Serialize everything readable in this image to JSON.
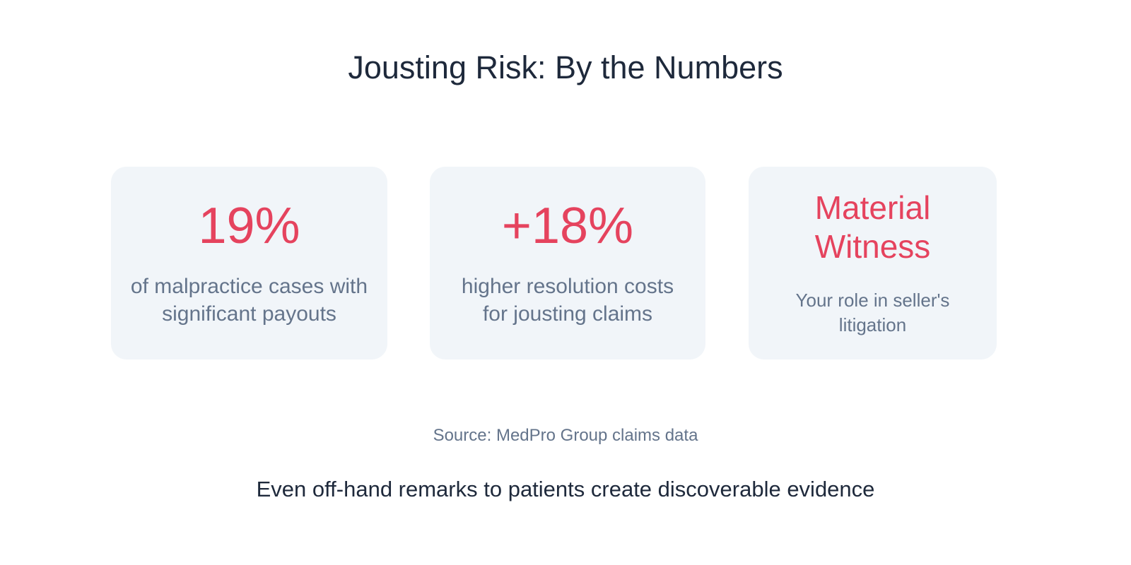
{
  "header": {
    "title": "Jousting Risk: By the Numbers"
  },
  "cards": [
    {
      "stat": "19%",
      "description": "of malpractice cases with significant payouts"
    },
    {
      "stat": "+18%",
      "description": "higher resolution costs for jousting claims"
    },
    {
      "stat": "Material Witness",
      "description": "Your role in seller's litigation"
    }
  ],
  "footer": {
    "source": "Source: MedPro Group claims data",
    "note": "Even off-hand remarks to patients create discoverable evidence"
  }
}
